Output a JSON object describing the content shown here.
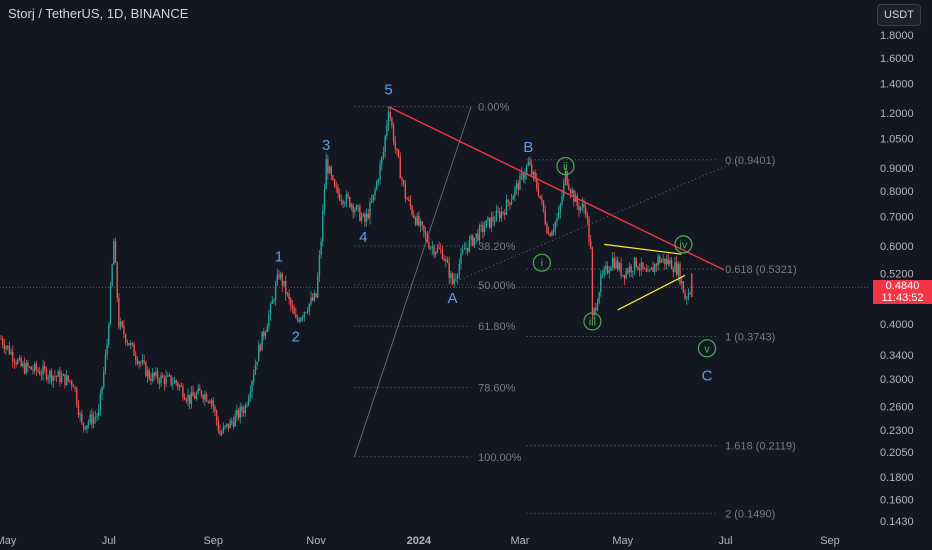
{
  "header": {
    "title": "Storj / TetherUS, 1D, BINANCE",
    "currency_button": "USDT"
  },
  "price_tag": {
    "price": "0.4840",
    "countdown": "11:43:52"
  },
  "colors": {
    "background": "#131722",
    "bull": "#26a69a",
    "bear": "#ef5350",
    "text": "#d1d4dc",
    "axis_text": "#b2b5be",
    "wave_label": "#5b9cf6",
    "subwave": "#4caf50",
    "trendline": "#f23645",
    "triangle": "#ffeb3b",
    "fib_lines": "#787b86",
    "last_price": "#f23645"
  },
  "icons": [
    "circle-marker-icon"
  ],
  "chart_data": {
    "type": "candlestick",
    "symbol": "Storj / TetherUS",
    "interval": "1D",
    "exchange": "BINANCE",
    "x_range": [
      "2023-05-01",
      "2024-09-05"
    ],
    "y_scale": "log",
    "y_range": [
      0.137,
      2.0
    ],
    "y_ticks": [
      "1.8000",
      "1.6000",
      "1.4000",
      "1.2000",
      "1.0500",
      "0.9000",
      "0.8000",
      "0.7000",
      "0.6000",
      "0.5200",
      "0.4000",
      "0.3400",
      "0.3000",
      "0.2600",
      "0.2300",
      "0.2050",
      "0.1800",
      "0.1600",
      "0.1430"
    ],
    "x_ticks": [
      {
        "label": "May",
        "date": "2023-05-01"
      },
      {
        "label": "Jul",
        "date": "2023-07-01"
      },
      {
        "label": "Sep",
        "date": "2023-09-01"
      },
      {
        "label": "Nov",
        "date": "2023-11-01"
      },
      {
        "label": "2024",
        "date": "2024-01-01"
      },
      {
        "label": "Mar",
        "date": "2024-03-01"
      },
      {
        "label": "May",
        "date": "2024-05-01"
      },
      {
        "label": "Jul",
        "date": "2024-07-01"
      },
      {
        "label": "Sep",
        "date": "2024-09-01"
      }
    ],
    "last_price": 0.484,
    "price_path": [
      [
        "2023-04-28",
        0.37
      ],
      [
        "2023-05-10",
        0.32
      ],
      [
        "2023-05-25",
        0.31
      ],
      [
        "2023-06-10",
        0.295
      ],
      [
        "2023-06-15",
        0.235
      ],
      [
        "2023-06-25",
        0.25
      ],
      [
        "2023-06-30",
        0.36
      ],
      [
        "2023-07-04",
        0.615
      ],
      [
        "2023-07-07",
        0.4
      ],
      [
        "2023-07-15",
        0.35
      ],
      [
        "2023-07-25",
        0.305
      ],
      [
        "2023-08-10",
        0.295
      ],
      [
        "2023-08-18",
        0.27
      ],
      [
        "2023-08-25",
        0.28
      ],
      [
        "2023-08-31",
        0.27
      ],
      [
        "2023-09-05",
        0.225
      ],
      [
        "2023-09-12",
        0.24
      ],
      [
        "2023-09-20",
        0.26
      ],
      [
        "2023-09-28",
        0.35
      ],
      [
        "2023-10-05",
        0.43
      ],
      [
        "2023-10-10",
        0.52
      ],
      [
        "2023-10-13",
        0.485
      ],
      [
        "2023-10-20",
        0.405
      ],
      [
        "2023-10-27",
        0.44
      ],
      [
        "2023-11-01",
        0.46
      ],
      [
        "2023-11-04",
        0.62
      ],
      [
        "2023-11-07",
        0.93
      ],
      [
        "2023-11-12",
        0.8
      ],
      [
        "2023-11-22",
        0.75
      ],
      [
        "2023-11-30",
        0.68
      ],
      [
        "2023-12-05",
        0.77
      ],
      [
        "2023-12-11",
        0.98
      ],
      [
        "2023-12-14",
        1.24
      ],
      [
        "2023-12-18",
        1.0
      ],
      [
        "2023-12-24",
        0.78
      ],
      [
        "2023-12-31",
        0.68
      ],
      [
        "2024-01-08",
        0.6
      ],
      [
        "2024-01-15",
        0.58
      ],
      [
        "2024-01-21",
        0.495
      ],
      [
        "2024-01-28",
        0.59
      ],
      [
        "2024-02-10",
        0.67
      ],
      [
        "2024-02-20",
        0.72
      ],
      [
        "2024-03-01",
        0.84
      ],
      [
        "2024-03-06",
        0.92
      ],
      [
        "2024-03-12",
        0.8
      ],
      [
        "2024-03-18",
        0.64
      ],
      [
        "2024-03-24",
        0.7
      ],
      [
        "2024-03-28",
        0.87
      ],
      [
        "2024-04-04",
        0.74
      ],
      [
        "2024-04-09",
        0.73
      ],
      [
        "2024-04-12",
        0.58
      ],
      [
        "2024-04-13",
        0.41
      ],
      [
        "2024-04-18",
        0.5
      ],
      [
        "2024-04-25",
        0.56
      ],
      [
        "2024-05-01",
        0.52
      ],
      [
        "2024-05-09",
        0.55
      ],
      [
        "2024-05-16",
        0.51
      ],
      [
        "2024-05-22",
        0.56
      ],
      [
        "2024-05-29",
        0.55
      ],
      [
        "2024-06-03",
        0.53
      ],
      [
        "2024-06-07",
        0.46
      ],
      [
        "2024-06-11",
        0.484
      ]
    ],
    "elliott_wave_labels": [
      {
        "text": "1",
        "date": "2023-10-10",
        "price": 0.52,
        "position": "above"
      },
      {
        "text": "2",
        "date": "2023-10-20",
        "price": 0.405,
        "position": "below"
      },
      {
        "text": "3",
        "date": "2023-11-07",
        "price": 0.93,
        "position": "above"
      },
      {
        "text": "4",
        "date": "2023-11-29",
        "price": 0.68,
        "position": "below"
      },
      {
        "text": "5",
        "date": "2023-12-14",
        "price": 1.24,
        "position": "above"
      },
      {
        "text": "A",
        "date": "2024-01-21",
        "price": 0.495,
        "position": "below"
      },
      {
        "text": "B",
        "date": "2024-03-06",
        "price": 0.92,
        "position": "above"
      },
      {
        "text": "C",
        "date": "2024-06-20",
        "price": 0.33,
        "position": "below"
      }
    ],
    "subwave_labels": [
      {
        "text": "i",
        "date": "2024-03-14",
        "price": 0.55
      },
      {
        "text": "ii",
        "date": "2024-03-28",
        "price": 0.91
      },
      {
        "text": "iii",
        "date": "2024-04-13",
        "price": 0.405
      },
      {
        "text": "iv",
        "date": "2024-06-06",
        "price": 0.605
      },
      {
        "text": "v",
        "date": "2024-06-20",
        "price": 0.352
      }
    ],
    "fib_retracement": {
      "top_price": 1.24,
      "bottom_price": 0.2,
      "from_date": "2023-11-25",
      "to_date": "2024-02-01",
      "levels": [
        {
          "label": "0.00%",
          "price": 1.24
        },
        {
          "label": "38.20%",
          "price": 0.6
        },
        {
          "label": "50.00%",
          "price": 0.49
        },
        {
          "label": "61.80%",
          "price": 0.395
        },
        {
          "label": "78.60%",
          "price": 0.287
        },
        {
          "label": "100.00%",
          "price": 0.2
        }
      ]
    },
    "fib_extension": {
      "levels": [
        {
          "label": "0 (0.9401)",
          "price": 0.9401
        },
        {
          "label": "0.618 (0.5321)",
          "price": 0.5321
        },
        {
          "label": "1 (0.3743)",
          "price": 0.3743
        },
        {
          "label": "1.618 (0.2119)",
          "price": 0.2119
        },
        {
          "label": "2 (0.1490)",
          "price": 0.149
        }
      ]
    },
    "trendline": [
      [
        "2023-12-14",
        1.24
      ],
      [
        "2024-06-30",
        0.53
      ]
    ],
    "triangle": {
      "upper": [
        [
          "2024-04-20",
          0.605
        ],
        [
          "2024-06-05",
          0.575
        ]
      ],
      "lower": [
        [
          "2024-04-28",
          0.43
        ],
        [
          "2024-06-07",
          0.515
        ]
      ]
    }
  }
}
